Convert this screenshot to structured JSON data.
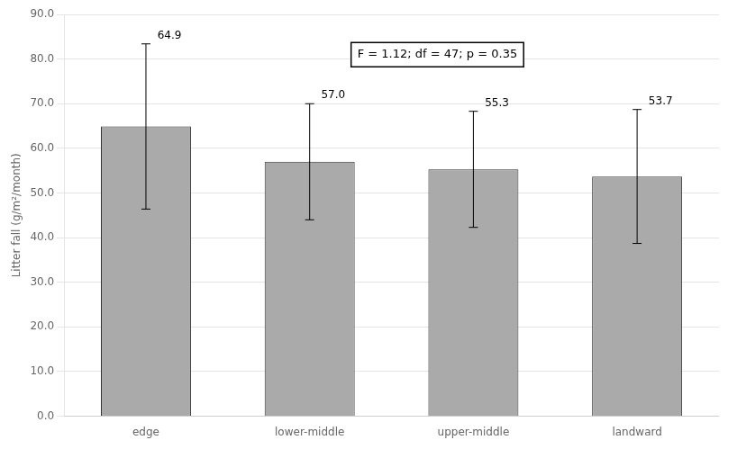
{
  "chart_data": {
    "type": "bar",
    "y_label": "Litter fall (g/m²/month)",
    "categories": [
      "edge",
      "lower-middle",
      "upper-middle",
      "landward"
    ],
    "values": [
      64.9,
      57.0,
      55.3,
      53.7
    ],
    "errors": [
      18.5,
      13.0,
      13.0,
      15.0
    ],
    "color": "#aaaaaa",
    "data_labels": true,
    "value_labels": [
      "64.9",
      "57.0",
      "55.3",
      "53.7"
    ],
    "annotation": "F = 1.12; df = 47; p = 0.35",
    "ylim": [
      0,
      90
    ],
    "yticks": [
      {
        "value": 0,
        "label": "0.0"
      },
      {
        "value": 10,
        "label": "10.0"
      },
      {
        "value": 20,
        "label": "20.0"
      },
      {
        "value": 30,
        "label": "30.0"
      },
      {
        "value": 40,
        "label": "40.0"
      },
      {
        "value": 50,
        "label": "50.0"
      },
      {
        "value": 60,
        "label": "60.0"
      },
      {
        "value": 70,
        "label": "70.0"
      },
      {
        "value": 80,
        "label": "80.0"
      },
      {
        "value": 90,
        "label": "90.0"
      }
    ],
    "grid": true
  }
}
